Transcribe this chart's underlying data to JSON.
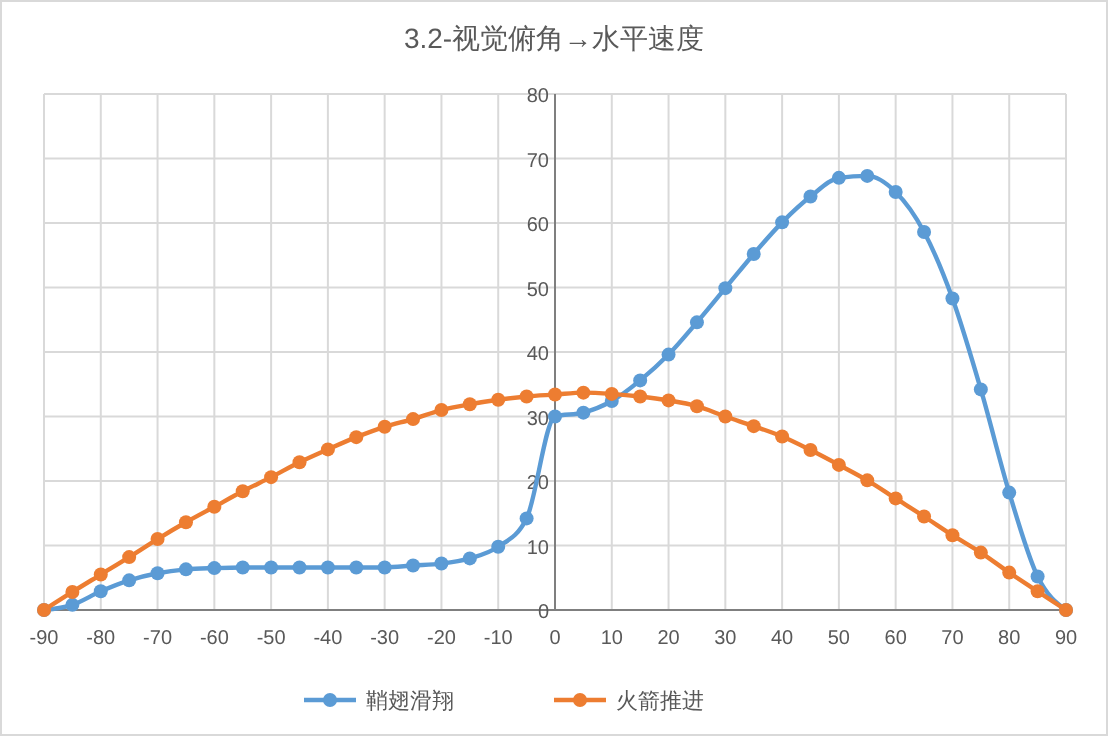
{
  "chart_data": {
    "type": "line",
    "title": "3.2-视觉俯角→水平速度",
    "x": [
      -90,
      -85,
      -80,
      -75,
      -70,
      -65,
      -60,
      -55,
      -50,
      -45,
      -40,
      -35,
      -30,
      -25,
      -20,
      -15,
      -10,
      -5,
      0,
      5,
      10,
      15,
      20,
      25,
      30,
      35,
      40,
      45,
      50,
      55,
      60,
      65,
      70,
      75,
      80,
      85,
      90
    ],
    "series": [
      {
        "name": "鞘翅滑翔",
        "color": "#5b9bd5",
        "values": [
          0,
          0.8,
          2.9,
          4.6,
          5.7,
          6.3,
          6.5,
          6.6,
          6.6,
          6.6,
          6.6,
          6.6,
          6.6,
          6.9,
          7.2,
          8.0,
          9.8,
          14.2,
          30.0,
          30.6,
          32.4,
          35.6,
          39.6,
          44.6,
          49.9,
          55.2,
          60.1,
          64.1,
          67.0,
          67.3,
          64.8,
          58.6,
          48.3,
          34.2,
          18.2,
          5.2,
          0
        ]
      },
      {
        "name": "火箭推进",
        "color": "#ed7d31",
        "values": [
          0,
          2.8,
          5.5,
          8.2,
          11.0,
          13.6,
          16.0,
          18.4,
          20.6,
          22.9,
          24.9,
          26.8,
          28.4,
          29.6,
          31.0,
          31.9,
          32.6,
          33.1,
          33.4,
          33.7,
          33.5,
          33.1,
          32.5,
          31.6,
          30.0,
          28.5,
          26.9,
          24.8,
          22.5,
          20.1,
          17.3,
          14.5,
          11.6,
          8.9,
          5.8,
          2.9,
          0
        ]
      }
    ],
    "xlim": [
      -90,
      90
    ],
    "xticks": [
      -90,
      -80,
      -70,
      -60,
      -50,
      -40,
      -30,
      -20,
      -10,
      0,
      10,
      20,
      30,
      40,
      50,
      60,
      70,
      80,
      90
    ],
    "ylim": [
      0,
      80
    ],
    "yticks": [
      0,
      10,
      20,
      30,
      40,
      50,
      60,
      70,
      80
    ],
    "grid": true,
    "legend": "bottom",
    "marker": "circle",
    "line_style": "solid"
  }
}
